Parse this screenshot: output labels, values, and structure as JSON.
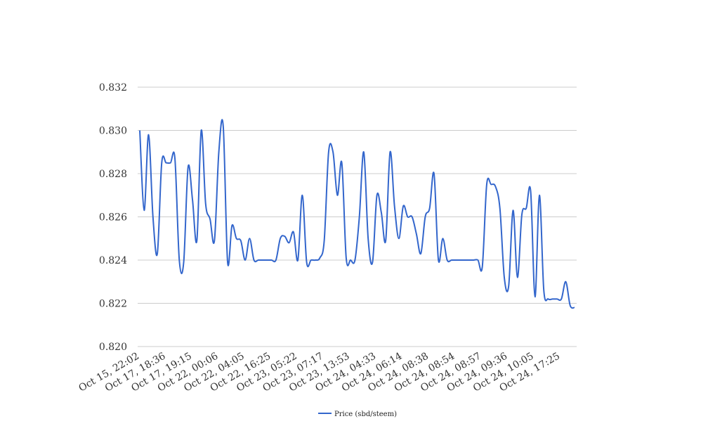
{
  "chart_data": {
    "type": "line",
    "title": "",
    "xlabel": "",
    "ylabel": "",
    "ylim": [
      0.82,
      0.832
    ],
    "y_ticks": [
      0.82,
      0.822,
      0.824,
      0.826,
      0.828,
      0.83,
      0.832
    ],
    "y_tick_labels": [
      "0.820",
      "0.822",
      "0.824",
      "0.826",
      "0.828",
      "0.830",
      "0.832"
    ],
    "x_tick_labels": [
      "Oct 15, 22:02",
      "Oct 17, 18:36",
      "Oct 17, 19:15",
      "Oct 22, 00:06",
      "Oct 22, 04:05",
      "Oct 22, 16:25",
      "Oct 23, 05:22",
      "Oct 23, 07:17",
      "Oct 23, 13:53",
      "Oct 24, 04:33",
      "Oct 24, 06:14",
      "Oct 24, 08:38",
      "Oct 24, 08:54",
      "Oct 24, 08:57",
      "Oct 24, 09:36",
      "Oct 24, 10:05",
      "Oct 24, 17:25"
    ],
    "grid": true,
    "legend_position": "bottom",
    "series": [
      {
        "name": "Price (sbd/steem)",
        "color": "#3366cc",
        "values": [
          0.83,
          0.8263,
          0.8298,
          0.826,
          0.8243,
          0.8285,
          0.8285,
          0.8285,
          0.8287,
          0.824,
          0.8239,
          0.8283,
          0.8268,
          0.8249,
          0.83,
          0.8266,
          0.8259,
          0.8249,
          0.829,
          0.8302,
          0.8239,
          0.8256,
          0.825,
          0.8249,
          0.824,
          0.825,
          0.824,
          0.824,
          0.824,
          0.824,
          0.824,
          0.824,
          0.825,
          0.8251,
          0.8248,
          0.8253,
          0.824,
          0.827,
          0.8239,
          0.824,
          0.824,
          0.8241,
          0.8249,
          0.829,
          0.829,
          0.827,
          0.8285,
          0.8241,
          0.824,
          0.824,
          0.826,
          0.829,
          0.825,
          0.8239,
          0.827,
          0.8262,
          0.8249,
          0.829,
          0.8265,
          0.825,
          0.8265,
          0.826,
          0.826,
          0.8252,
          0.8243,
          0.826,
          0.8264,
          0.828,
          0.824,
          0.825,
          0.824,
          0.824,
          0.824,
          0.824,
          0.824,
          0.824,
          0.824,
          0.824,
          0.8237,
          0.8275,
          0.8275,
          0.8274,
          0.8264,
          0.8232,
          0.8228,
          0.8263,
          0.8232,
          0.8261,
          0.8264,
          0.8272,
          0.8223,
          0.827,
          0.8226,
          0.8222,
          0.8222,
          0.8222,
          0.8222,
          0.823,
          0.8219,
          0.8218
        ]
      }
    ]
  }
}
